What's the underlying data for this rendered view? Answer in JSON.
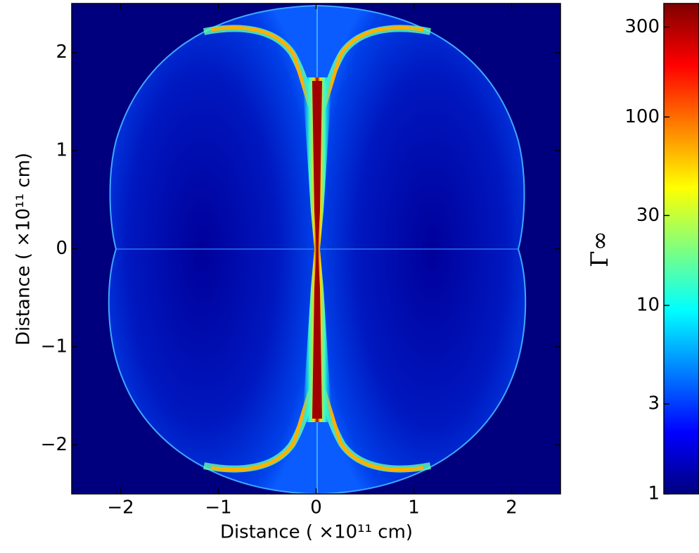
{
  "chart_data": {
    "type": "heatmap",
    "x_label": "Distance ( ×10¹¹ cm)",
    "y_label": "Distance ( ×10¹¹ cm)",
    "xlim": [
      -2.5,
      2.5
    ],
    "ylim": [
      -2.5,
      2.5
    ],
    "xticks": [
      {
        "value": -2,
        "label": "−2"
      },
      {
        "value": -1,
        "label": "−1"
      },
      0,
      1,
      2
    ],
    "yticks": [
      {
        "value": -2,
        "label": "−2"
      },
      {
        "value": -1,
        "label": "−1"
      },
      0,
      1,
      2
    ],
    "colorbar": {
      "label": "Γ∞",
      "log_scale": true,
      "clim": [
        1,
        400
      ],
      "ticks": [
        1,
        3,
        10,
        30,
        100,
        300
      ],
      "colormap": "jet"
    }
  }
}
